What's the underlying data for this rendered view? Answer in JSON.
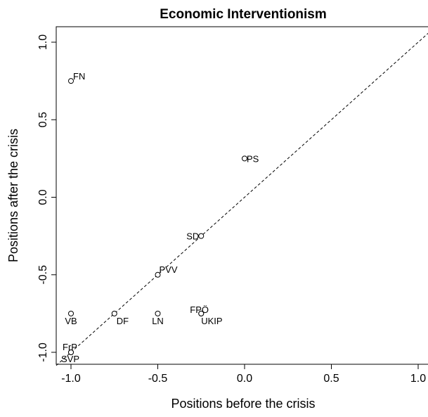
{
  "chart_data": {
    "type": "scatter",
    "title": "Economic Interventionism",
    "xlabel": "Positions before the crisis",
    "ylabel": "Positions after the crisis",
    "xlim": [
      -1.0,
      1.0
    ],
    "ylim": [
      -1.0,
      1.0
    ],
    "xticks": [
      "-1.0",
      "-0.5",
      "0.0",
      "0.5",
      "1.0"
    ],
    "yticks": [
      "-1.0",
      "-0.5",
      "0.0",
      "0.5",
      "1.0"
    ],
    "reference_line": "y = x (dashed)",
    "points": [
      {
        "label": "FN",
        "x": -1.0,
        "y": 0.75
      },
      {
        "label": "PS",
        "x": 0.0,
        "y": 0.25
      },
      {
        "label": "SD",
        "x": -0.25,
        "y": -0.25
      },
      {
        "label": "PVV",
        "x": -0.5,
        "y": -0.5
      },
      {
        "label": "VB",
        "x": -1.0,
        "y": -0.75
      },
      {
        "label": "DF",
        "x": -0.75,
        "y": -0.75
      },
      {
        "label": "LN",
        "x": -0.5,
        "y": -0.75
      },
      {
        "label": "FPÖ",
        "x": -0.25,
        "y": -0.75
      },
      {
        "label": "UKIP",
        "x": -0.25,
        "y": -0.75
      },
      {
        "label": "FrP",
        "x": -1.0,
        "y": -1.0
      },
      {
        "label": "SVP",
        "x": -1.0,
        "y": -1.0
      }
    ]
  }
}
